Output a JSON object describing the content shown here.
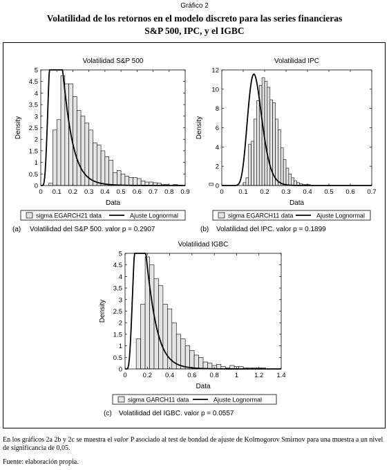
{
  "figure_label": "Gráfico 2",
  "title_line1": "Volatilidad de los retornos en el modelo discreto para las series financieras",
  "title_line2": "S&P 500, IPC, y el IGBC",
  "footnote_prefix": "En los gráficos 2a 2b y 2c se muestra el ",
  "footnote_italic": "valor",
  "footnote_suffix": " P asociado al test de bondad de ajuste de Kolmogorov Smirnov para una muestra a un nivel de significancia de 0,05.",
  "source": "Fuente: elaboración propia.",
  "colors": {
    "bar_fill": "#e4e4e4",
    "bar_stroke": "#000000",
    "curve": "#000000"
  },
  "chart_data": [
    {
      "type": "bar",
      "title": "Volatilidad S&P 500",
      "xlabel": "Data",
      "ylabel": "Density",
      "xlim": [
        0,
        0.9
      ],
      "ylim": [
        0,
        5
      ],
      "xticks": [
        "0",
        "0.1",
        "0.2",
        "0.3",
        "0.4",
        "0.5",
        "0.6",
        "0.7",
        "0.8",
        "0.9"
      ],
      "yticks": [
        "0",
        "0.5",
        "1",
        "1.5",
        "2",
        "2.5",
        "3",
        "3.5",
        "4",
        "4.5",
        "5"
      ],
      "bins": {
        "start": 0.05,
        "width": 0.025,
        "values": [
          0.1,
          2.4,
          2.85,
          4.75,
          4.4,
          4.4,
          3.85,
          3.25,
          3.0,
          2.7,
          2.4,
          1.85,
          1.75,
          1.5,
          1.25,
          1.1,
          0.55,
          0.65,
          0.5,
          0.4,
          0.35,
          0.35,
          0.3,
          0.2,
          0.15,
          0.15,
          0.12,
          0.1,
          0.05,
          0.05,
          0.0,
          0.05,
          0.02,
          0.0,
          0.0,
          0.0,
          0.0,
          0.0,
          0.0,
          0.0,
          0.1,
          0.0,
          0.0,
          0.0
        ]
      },
      "fit_curve": {
        "mode": 0.14,
        "peak": 4.75,
        "sigma": 0.5
      },
      "legend": [
        "sigma EGARCH21 data",
        "Ajuste Lognormal"
      ],
      "caption_letter": "(a)",
      "caption_text": "Volatilidad del S&P 500. valor p = 0.2907"
    },
    {
      "type": "bar",
      "title": "Volatilidad IPC",
      "xlabel": "Data",
      "ylabel": "Density",
      "xlim": [
        0,
        0.7
      ],
      "ylim": [
        0,
        12
      ],
      "xticks": [
        "0",
        "0.1",
        "0.2",
        "0.3",
        "0.4",
        "0.5",
        "0.6",
        "0.7"
      ],
      "yticks": [
        "0",
        "2",
        "4",
        "6",
        "8",
        "10",
        "12"
      ],
      "bins": {
        "start": 0.1,
        "width": 0.0125,
        "values": [
          0.3,
          0.8,
          4.3,
          4.6,
          6.9,
          8.8,
          10.4,
          11.2,
          10.8,
          10.2,
          8.9,
          8.6,
          6.9,
          5.8,
          3.9,
          2.7,
          1.8,
          1.2,
          0.8,
          0.5,
          0.3,
          0.2,
          0.1,
          0.1,
          0.1
        ]
      },
      "fit_curve": {
        "mode": 0.165,
        "peak": 10.5,
        "sigma": 0.22
      },
      "legend": [
        "sigma EGARCH11 data",
        "Ajuste Lognormal"
      ],
      "caption_letter": "(b)",
      "caption_text": "Volatilidad del IPC. valor p = 0.1899"
    },
    {
      "type": "bar",
      "title": "Volatilidad IGBC",
      "xlabel": "Data",
      "ylabel": "Density",
      "xlim": [
        0,
        1.4
      ],
      "ylim": [
        0,
        5
      ],
      "xticks": [
        "0",
        "0.2",
        "0.4",
        "0.6",
        "0.8",
        "1",
        "1.2",
        "1.4"
      ],
      "yticks": [
        "0",
        "0.5",
        "1",
        "1.5",
        "2",
        "2.5",
        "3",
        "3.5",
        "4",
        "4.5",
        "5"
      ],
      "bins": {
        "start": 0.1,
        "width": 0.04,
        "values": [
          1.3,
          2.8,
          4.85,
          4.5,
          3.9,
          3.6,
          2.8,
          2.6,
          2.0,
          1.5,
          1.3,
          1.0,
          0.8,
          0.6,
          0.5,
          0.3,
          0.25,
          0.15,
          0.2,
          0.1,
          0.05,
          0.15,
          0.1,
          0.1,
          0.05,
          0.05,
          0.05,
          0.05,
          0.05
        ]
      },
      "fit_curve": {
        "mode": 0.205,
        "peak": 4.2,
        "sigma": 0.5
      },
      "legend": [
        "sigma GARCH11 data",
        "Ajuste Lognormal"
      ],
      "caption_letter": "(c)",
      "caption_text": "Volatilidad del IGBC. valor p = 0.0557"
    }
  ]
}
